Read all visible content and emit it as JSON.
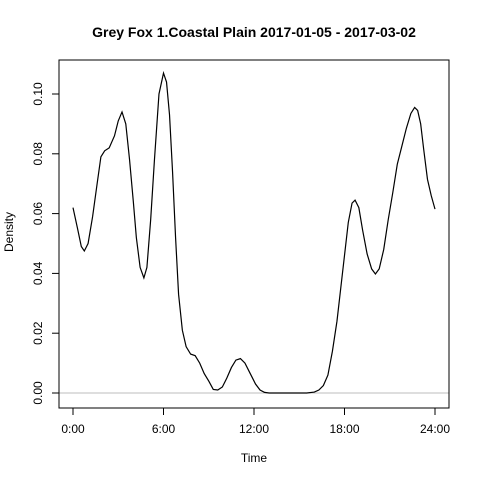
{
  "chart_data": {
    "type": "line",
    "title": "Grey Fox 1.Coastal Plain 2017-01-05 - 2017-03-02",
    "xlabel": "Time",
    "ylabel": "Density",
    "xlim": [
      0,
      24
    ],
    "ylim": [
      0,
      0.11
    ],
    "x_ticks": [
      0,
      6,
      12,
      18,
      24
    ],
    "x_tick_labels": [
      "0:00",
      "6:00",
      "12:00",
      "18:00",
      "24:00"
    ],
    "y_ticks": [
      0,
      0.02,
      0.04,
      0.06,
      0.08,
      0.1
    ],
    "y_tick_labels": [
      "0.00",
      "0.02",
      "0.04",
      "0.06",
      "0.08",
      "0.10"
    ],
    "grid": false,
    "baseline": 0,
    "baseline_color": "#bebebe",
    "line_color": "#000000",
    "series": [
      {
        "x": [
          0,
          0.3,
          0.55,
          0.75,
          1,
          1.3,
          1.6,
          1.85,
          2.1,
          2.4,
          2.75,
          3,
          3.25,
          3.5,
          3.75,
          4,
          4.2,
          4.45,
          4.7,
          4.9,
          5.15,
          5.4,
          5.7,
          6,
          6.2,
          6.4,
          6.6,
          6.8,
          7,
          7.25,
          7.5,
          7.8,
          8.1,
          8.4,
          8.7,
          9,
          9.3,
          9.6,
          9.9,
          10.2,
          10.5,
          10.8,
          11.1,
          11.4,
          11.75,
          12.1,
          12.4,
          12.7,
          13,
          13.5,
          14,
          14.5,
          15,
          15.5,
          16,
          16.3,
          16.6,
          16.9,
          17.2,
          17.5,
          17.75,
          18,
          18.25,
          18.5,
          18.7,
          18.95,
          19.2,
          19.5,
          19.8,
          20.05,
          20.3,
          20.6,
          20.9,
          21.2,
          21.5,
          21.8,
          22.1,
          22.4,
          22.65,
          22.85,
          23.05,
          23.25,
          23.5,
          23.75,
          24
        ],
        "y": [
          0.062,
          0.055,
          0.049,
          0.0475,
          0.05,
          0.059,
          0.07,
          0.079,
          0.081,
          0.082,
          0.086,
          0.091,
          0.094,
          0.09,
          0.078,
          0.064,
          0.052,
          0.042,
          0.0385,
          0.042,
          0.058,
          0.078,
          0.1,
          0.107,
          0.104,
          0.093,
          0.074,
          0.052,
          0.033,
          0.021,
          0.0155,
          0.013,
          0.0125,
          0.01,
          0.0065,
          0.004,
          0.0012,
          0.001,
          0.002,
          0.005,
          0.0085,
          0.011,
          0.0115,
          0.01,
          0.0065,
          0.003,
          0.001,
          0.0002,
          0,
          0,
          0,
          0,
          0,
          0,
          0.0003,
          0.001,
          0.0025,
          0.006,
          0.014,
          0.024,
          0.035,
          0.046,
          0.057,
          0.0635,
          0.0645,
          0.062,
          0.0545,
          0.0465,
          0.0415,
          0.0398,
          0.0415,
          0.048,
          0.058,
          0.067,
          0.0765,
          0.0825,
          0.0885,
          0.0935,
          0.0955,
          0.0945,
          0.09,
          0.0815,
          0.0715,
          0.066,
          0.0615
        ]
      }
    ]
  }
}
